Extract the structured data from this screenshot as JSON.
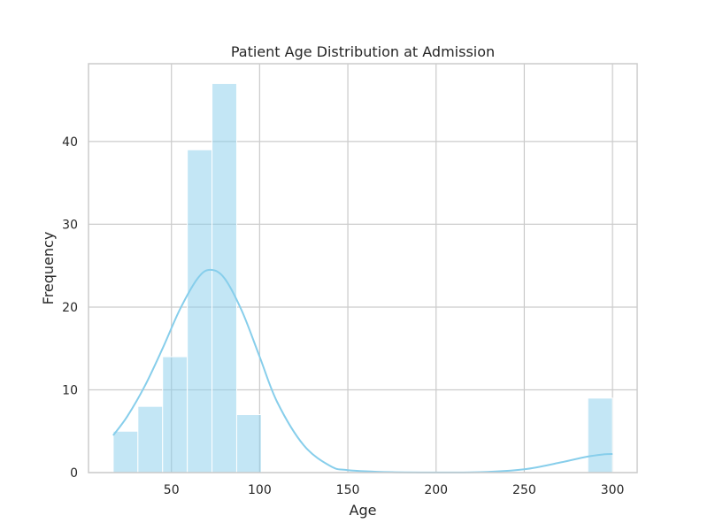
{
  "chart_data": {
    "type": "histogram",
    "title": "Patient Age Distribution at Admission",
    "xlabel": "Age",
    "ylabel": "Frequency",
    "xlim": [
      3,
      314
    ],
    "ylim": [
      0,
      49.4
    ],
    "xticks": [
      50,
      100,
      150,
      200,
      250,
      300
    ],
    "yticks": [
      0,
      10,
      20,
      30,
      40
    ],
    "grid": true,
    "bin_width": 14,
    "bins": [
      {
        "x0": 17,
        "x1": 31,
        "count": 5
      },
      {
        "x0": 31,
        "x1": 45,
        "count": 8
      },
      {
        "x0": 45,
        "x1": 59,
        "count": 14
      },
      {
        "x0": 59,
        "x1": 73,
        "count": 39
      },
      {
        "x0": 73,
        "x1": 87,
        "count": 47
      },
      {
        "x0": 87,
        "x1": 101,
        "count": 7
      },
      {
        "x0": 286,
        "x1": 300,
        "count": 9
      }
    ],
    "kde": {
      "x": [
        17,
        25,
        35,
        45,
        55,
        65,
        72,
        80,
        90,
        100,
        110,
        125,
        140,
        150,
        175,
        200,
        225,
        250,
        270,
        285,
        295,
        300
      ],
      "y": [
        4.5,
        6.8,
        10.5,
        15.0,
        19.8,
        23.5,
        24.5,
        23.5,
        19.5,
        14.0,
        8.5,
        3.3,
        0.8,
        0.3,
        0.05,
        0.02,
        0.05,
        0.4,
        1.2,
        1.9,
        2.2,
        2.25
      ]
    },
    "colors": {
      "bar_fill": "#87ceeb",
      "bar_opacity": 0.5,
      "bar_edge": "#ffffff",
      "kde_line": "#87ceeb"
    }
  }
}
